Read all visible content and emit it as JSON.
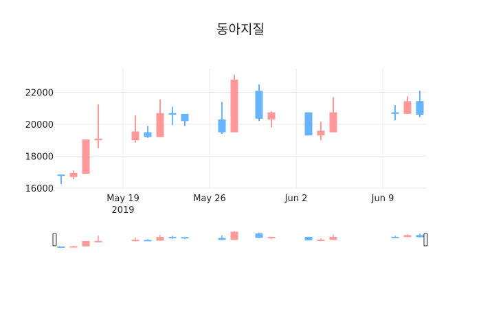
{
  "chart_data": {
    "type": "candlestick",
    "title": "동아지질",
    "xlabel": "",
    "ylabel": "",
    "ylim": [
      16000,
      23500
    ],
    "yticks": [
      16000,
      18000,
      20000,
      22000
    ],
    "xticks": [
      {
        "date": "2019-05-19",
        "label": "May 19",
        "sublabel": "2019"
      },
      {
        "date": "2019-05-26",
        "label": "May 26",
        "sublabel": ""
      },
      {
        "date": "2019-06-02",
        "label": "Jun 2",
        "sublabel": ""
      },
      {
        "date": "2019-06-09",
        "label": "Jun 9",
        "sublabel": ""
      }
    ],
    "grid": true,
    "rangeslider": true,
    "increasing_color": "#ff9999",
    "decreasing_color": "#66b3ff",
    "x": [
      "2019-05-14",
      "2019-05-15",
      "2019-05-16",
      "2019-05-17",
      "2019-05-20",
      "2019-05-21",
      "2019-05-22",
      "2019-05-23",
      "2019-05-24",
      "2019-05-27",
      "2019-05-28",
      "2019-05-30",
      "2019-05-31",
      "2019-06-03",
      "2019-06-04",
      "2019-06-05",
      "2019-06-10",
      "2019-06-11",
      "2019-06-12"
    ],
    "open": [
      16850,
      16700,
      16900,
      19000,
      19000,
      19500,
      19200,
      20700,
      20650,
      20300,
      19500,
      22100,
      20300,
      20750,
      19300,
      19500,
      20750,
      20650,
      21450
    ],
    "high": [
      16850,
      17100,
      19050,
      21250,
      20550,
      19900,
      21550,
      21100,
      20650,
      21400,
      23100,
      22500,
      20800,
      20750,
      20150,
      21700,
      21200,
      21750,
      22100
    ],
    "low": [
      16250,
      16550,
      16900,
      18500,
      18850,
      19150,
      19200,
      19950,
      19900,
      19400,
      19500,
      20200,
      19800,
      19300,
      19000,
      19500,
      20250,
      20650,
      20450
    ],
    "close": [
      16800,
      16950,
      19050,
      19100,
      19550,
      19200,
      20700,
      20600,
      20200,
      19500,
      22800,
      20350,
      20750,
      19300,
      19600,
      20750,
      20650,
      21450,
      20600
    ]
  }
}
